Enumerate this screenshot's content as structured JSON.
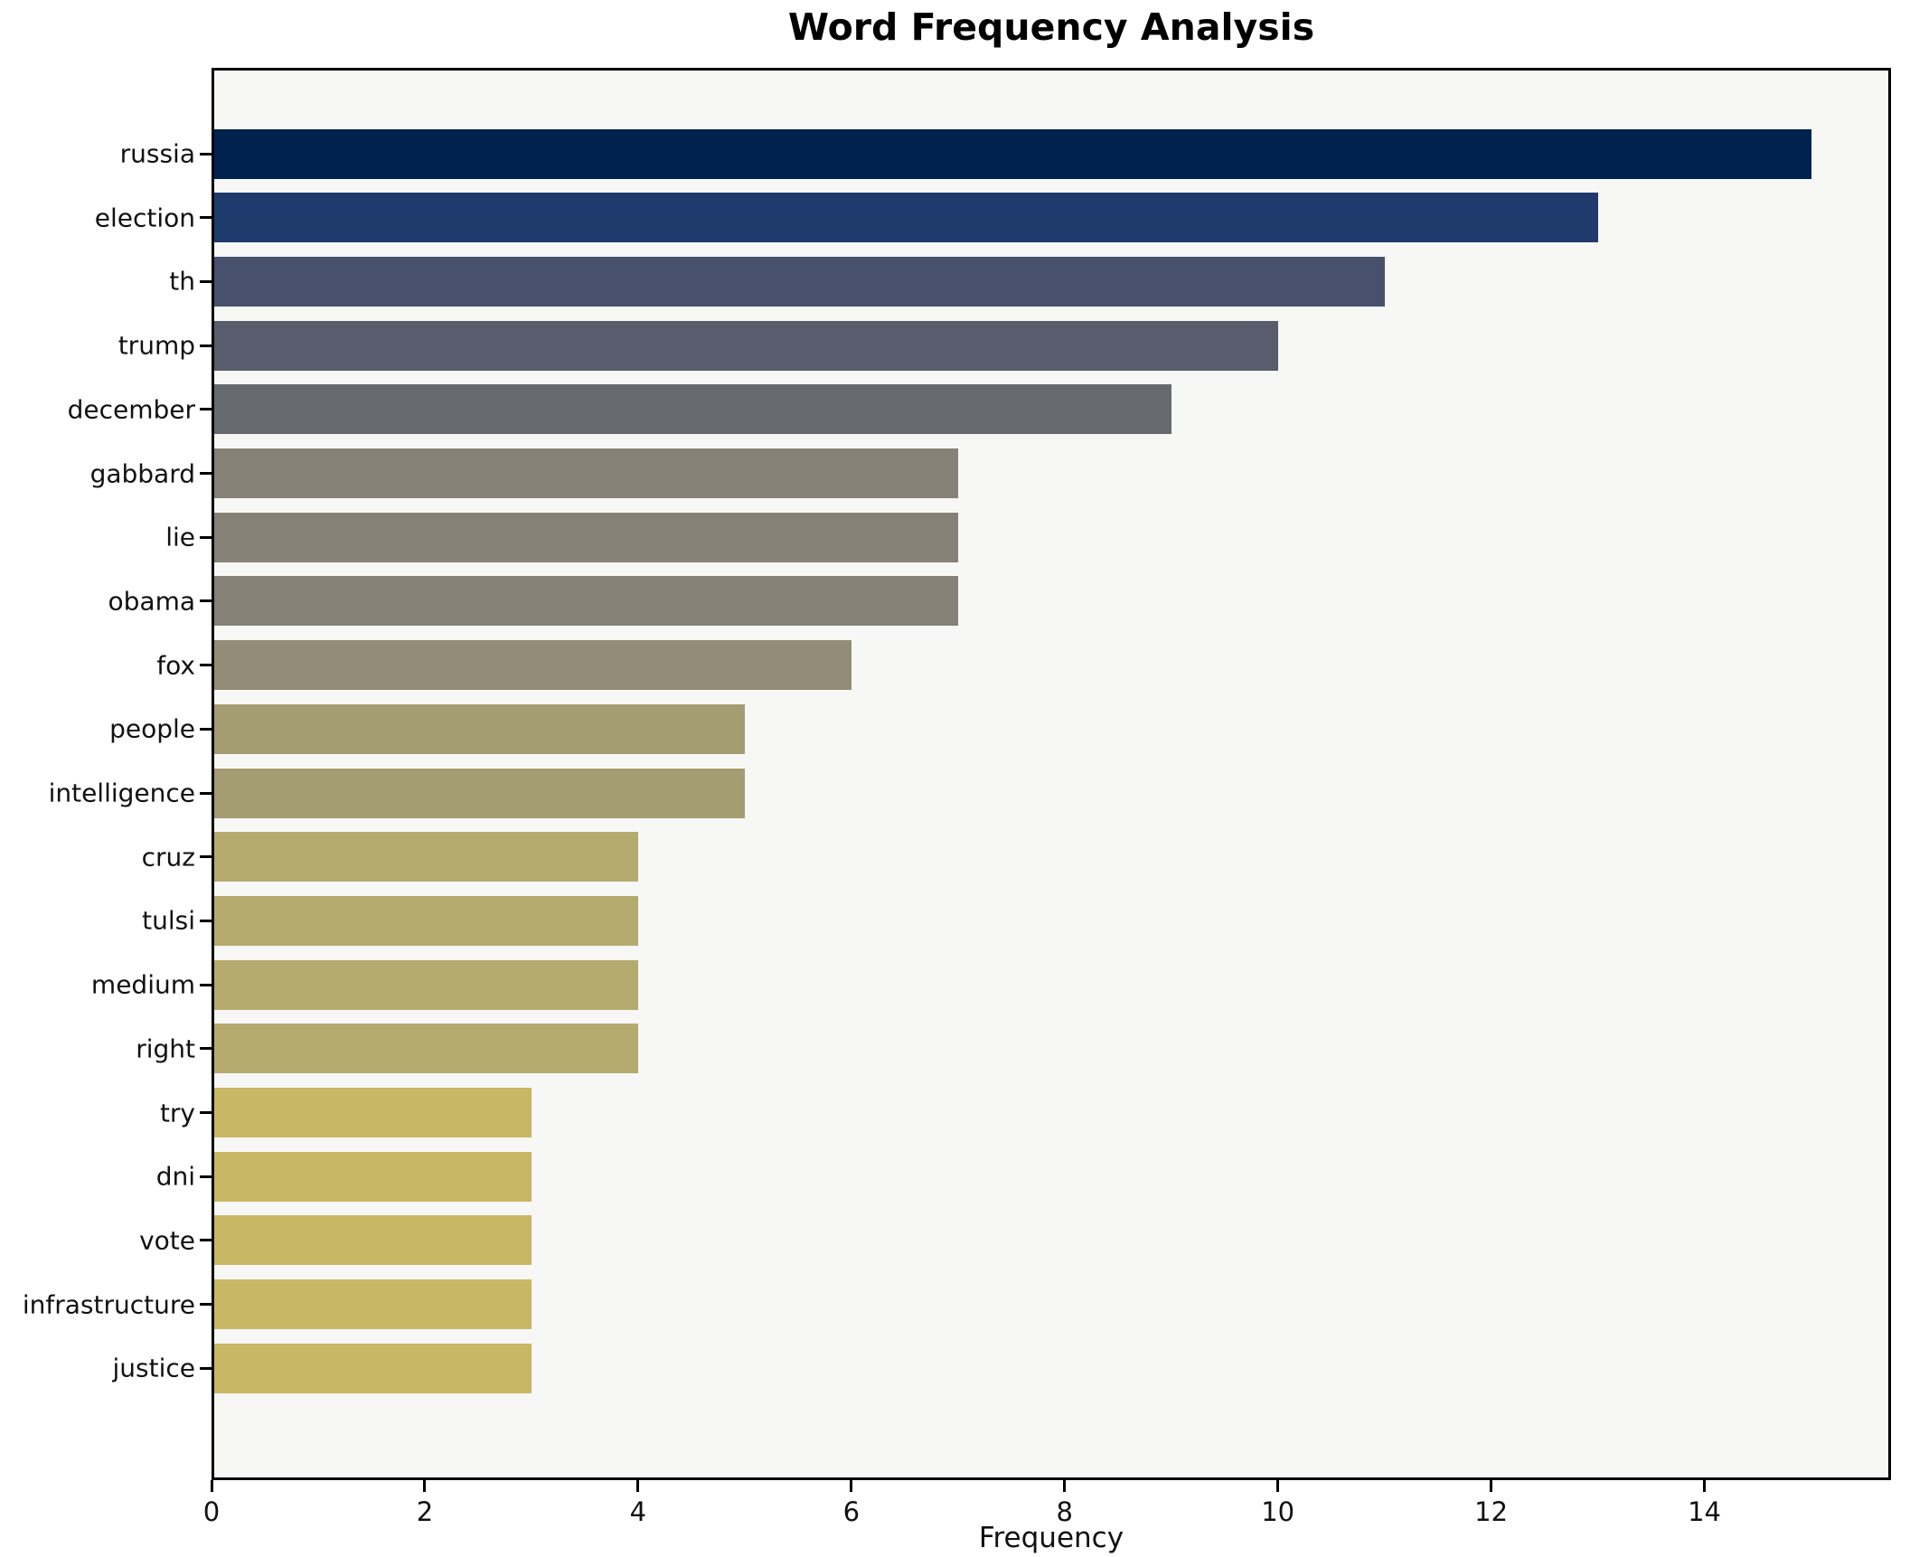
{
  "chart_data": {
    "type": "bar",
    "orientation": "horizontal",
    "title": "Word Frequency Analysis",
    "xlabel": "Frequency",
    "ylabel": "",
    "categories": [
      "russia",
      "election",
      "th",
      "trump",
      "december",
      "gabbard",
      "lie",
      "obama",
      "fox",
      "people",
      "intelligence",
      "cruz",
      "tulsi",
      "medium",
      "right",
      "try",
      "dni",
      "vote",
      "infrastructure",
      "justice"
    ],
    "values": [
      15,
      13,
      11,
      10,
      9,
      7,
      7,
      7,
      6,
      5,
      5,
      4,
      4,
      4,
      4,
      3,
      3,
      3,
      3,
      3
    ],
    "bar_colors": [
      "#00224e",
      "#1f3a6d",
      "#47506c",
      "#585c6c",
      "#666a70",
      "#858176",
      "#858176",
      "#858176",
      "#938d77",
      "#a49c72",
      "#a49c72",
      "#b5ab6f",
      "#b5ab6f",
      "#b5ab6f",
      "#b5ab6f",
      "#c8b765",
      "#c8b765",
      "#c8b765",
      "#c8b765",
      "#c8b765"
    ],
    "xlim": [
      0,
      15.75
    ],
    "xticks": [
      0,
      2,
      4,
      6,
      8,
      10,
      12,
      14
    ],
    "grid": false,
    "legend": null,
    "plot_bg": "#f7f7f6",
    "fig_bg": "#ffffff"
  }
}
